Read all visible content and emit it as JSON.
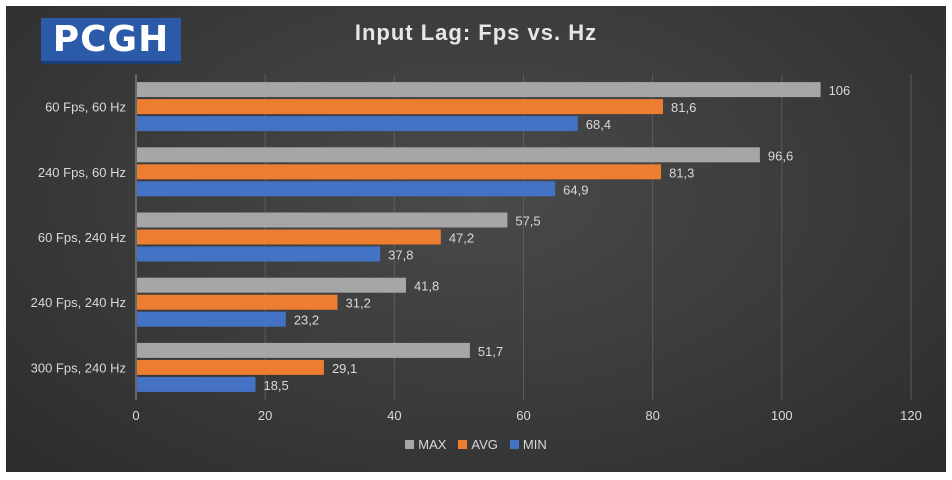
{
  "logo": {
    "text": "PCGH"
  },
  "chart_data": {
    "type": "bar",
    "orientation": "horizontal",
    "title": "Input Lag: Fps vs. Hz",
    "categories": [
      "60 Fps, 60 Hz",
      "240 Fps, 60 Hz",
      "60 Fps, 240 Hz",
      "240 Fps, 240 Hz",
      "300 Fps, 240 Hz"
    ],
    "series": [
      {
        "name": "MAX",
        "color": "#a6a6a6",
        "values": [
          106,
          96.6,
          57.5,
          41.8,
          51.7
        ],
        "labels": [
          "106",
          "96,6",
          "57,5",
          "41,8",
          "51,7"
        ]
      },
      {
        "name": "AVG",
        "color": "#ed7d31",
        "values": [
          81.6,
          81.3,
          47.2,
          31.2,
          29.1
        ],
        "labels": [
          "81,6",
          "81,3",
          "47,2",
          "31,2",
          "29,1"
        ]
      },
      {
        "name": "MIN",
        "color": "#4472c4",
        "values": [
          68.4,
          64.9,
          37.8,
          23.2,
          18.5
        ],
        "labels": [
          "68,4",
          "64,9",
          "37,8",
          "23,2",
          "18,5"
        ]
      }
    ],
    "xlim": [
      0,
      120
    ],
    "xticks": [
      "0",
      "20",
      "40",
      "60",
      "80",
      "100",
      "120"
    ],
    "grid": true,
    "legend": "bottom"
  }
}
